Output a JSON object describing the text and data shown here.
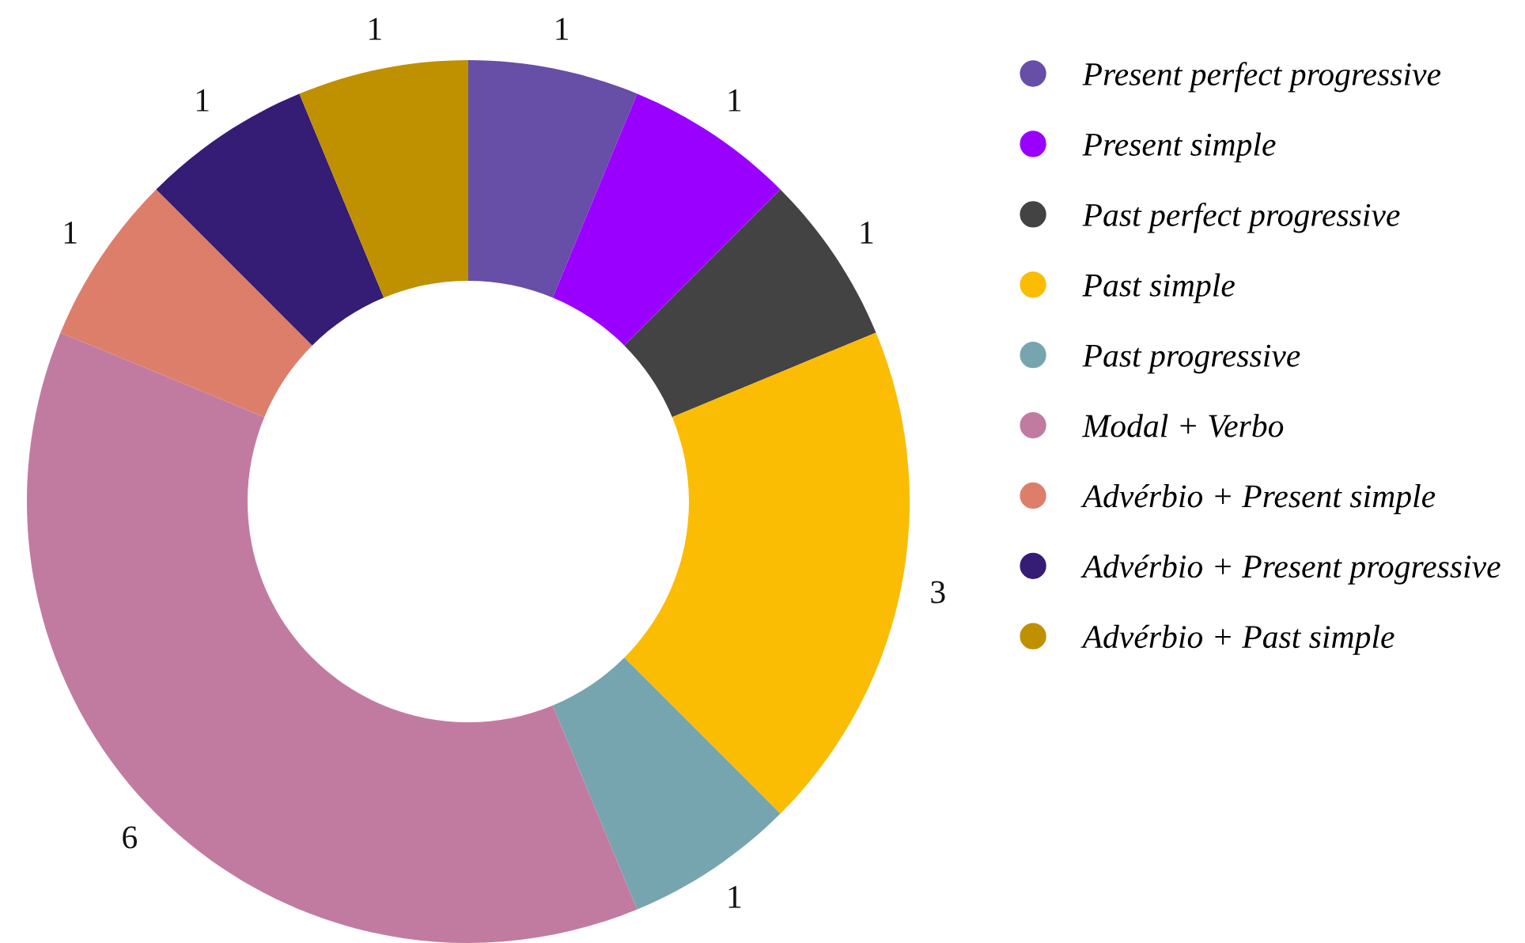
{
  "chart_data": {
    "type": "donut",
    "categories": [
      "Present perfect progressive",
      "Present simple",
      "Past perfect progressive",
      "Past simple",
      "Past progressive",
      "Modal + Verbo",
      "Advérbio + Present simple",
      "Advérbio + Present progressive",
      "Advérbio + Past simple"
    ],
    "values": [
      1,
      1,
      1,
      3,
      1,
      6,
      1,
      1,
      1
    ],
    "colors": [
      "#674ea7",
      "#9900ff",
      "#434343",
      "#fbbc04",
      "#76a5af",
      "#c27ba0",
      "#dd7e6b",
      "#351c75",
      "#bf9000"
    ],
    "data_labels": true,
    "legend": "right"
  }
}
